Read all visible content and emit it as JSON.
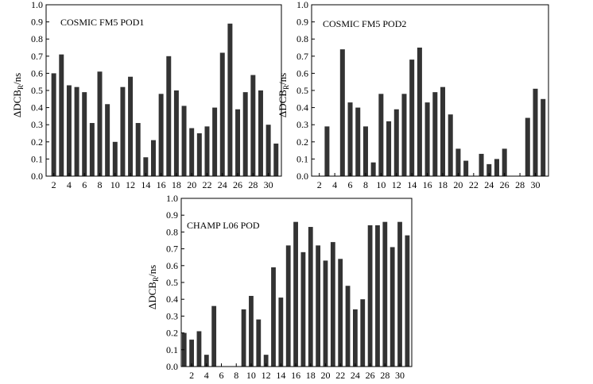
{
  "chart_data": [
    {
      "type": "bar",
      "title": "COSMIC FM5 POD1",
      "ylabel": "ΔDCB",
      "ylabel_sub": "R",
      "ylabel_unit": "/ns",
      "ylim": [
        0,
        1.0
      ],
      "yticks": [
        "0.0",
        "0.1",
        "0.2",
        "0.3",
        "0.4",
        "0.5",
        "0.6",
        "0.7",
        "0.8",
        "0.9",
        "1.0"
      ],
      "xticks": [
        "2",
        "4",
        "6",
        "8",
        "10",
        "12",
        "14",
        "16",
        "18",
        "20",
        "22",
        "24",
        "26",
        "28",
        "30"
      ],
      "categories": [
        2,
        3,
        4,
        5,
        6,
        7,
        8,
        9,
        10,
        11,
        12,
        13,
        14,
        15,
        16,
        17,
        18,
        19,
        20,
        21,
        22,
        23,
        24,
        25,
        26,
        27,
        28,
        29,
        30,
        31
      ],
      "values": [
        0.6,
        0.71,
        0.53,
        0.52,
        0.49,
        0.31,
        0.61,
        0.42,
        0.2,
        0.52,
        0.58,
        0.31,
        0.11,
        0.21,
        0.48,
        0.7,
        0.5,
        0.41,
        0.28,
        0.25,
        0.29,
        0.4,
        0.72,
        0.89,
        0.39,
        0.49,
        0.59,
        0.5,
        0.3,
        0.19
      ]
    },
    {
      "type": "bar",
      "title": "COSMIC FM5 POD2",
      "ylabel": "ΔDCB",
      "ylabel_sub": "R",
      "ylabel_unit": "/ns",
      "ylim": [
        0,
        1.0
      ],
      "yticks": [
        "0.0",
        "0.1",
        "0.2",
        "0.3",
        "0.4",
        "0.5",
        "0.6",
        "0.7",
        "0.8",
        "0.9",
        "1.0"
      ],
      "xticks": [
        "2",
        "4",
        "6",
        "8",
        "10",
        "12",
        "14",
        "16",
        "18",
        "20",
        "22",
        "24",
        "26",
        "28",
        "30"
      ],
      "categories": [
        2,
        3,
        4,
        5,
        6,
        7,
        8,
        9,
        10,
        11,
        12,
        13,
        14,
        15,
        16,
        17,
        18,
        19,
        20,
        21,
        22,
        23,
        24,
        25,
        26,
        27,
        28,
        29,
        30,
        31
      ],
      "values": [
        0,
        0.29,
        0,
        0.74,
        0.43,
        0.4,
        0.29,
        0.08,
        0.48,
        0.32,
        0.39,
        0.48,
        0.68,
        0.75,
        0.43,
        0.49,
        0.52,
        0.36,
        0.16,
        0.09,
        0,
        0.13,
        0.07,
        0.1,
        0.16,
        0,
        0,
        0.34,
        0.51,
        0.45
      ]
    },
    {
      "type": "bar",
      "title": "CHAMP L06 POD",
      "ylabel": "ΔDCB",
      "ylabel_sub": "R",
      "ylabel_unit": "/ns",
      "ylim": [
        0,
        1.0
      ],
      "yticks": [
        "0.0",
        "0.1",
        "0.2",
        "0.3",
        "0.4",
        "0.5",
        "0.6",
        "0.7",
        "0.8",
        "0.9",
        "1.0"
      ],
      "xticks": [
        "2",
        "4",
        "6",
        "8",
        "10",
        "12",
        "14",
        "16",
        "18",
        "20",
        "22",
        "24",
        "26",
        "28",
        "30"
      ],
      "categories": [
        1,
        2,
        3,
        4,
        5,
        6,
        7,
        8,
        9,
        10,
        11,
        12,
        13,
        14,
        15,
        16,
        17,
        18,
        19,
        20,
        21,
        22,
        23,
        24,
        25,
        26,
        27,
        28,
        29,
        30,
        31
      ],
      "values": [
        0.2,
        0.16,
        0.21,
        0.07,
        0.36,
        0,
        0,
        0,
        0.34,
        0.42,
        0.28,
        0.07,
        0.59,
        0.41,
        0.72,
        0.86,
        0.68,
        0.83,
        0.72,
        0.63,
        0.74,
        0.64,
        0.48,
        0.34,
        0.4,
        0.84,
        0.84,
        0.86,
        0.71,
        0.86,
        0.78
      ]
    }
  ]
}
